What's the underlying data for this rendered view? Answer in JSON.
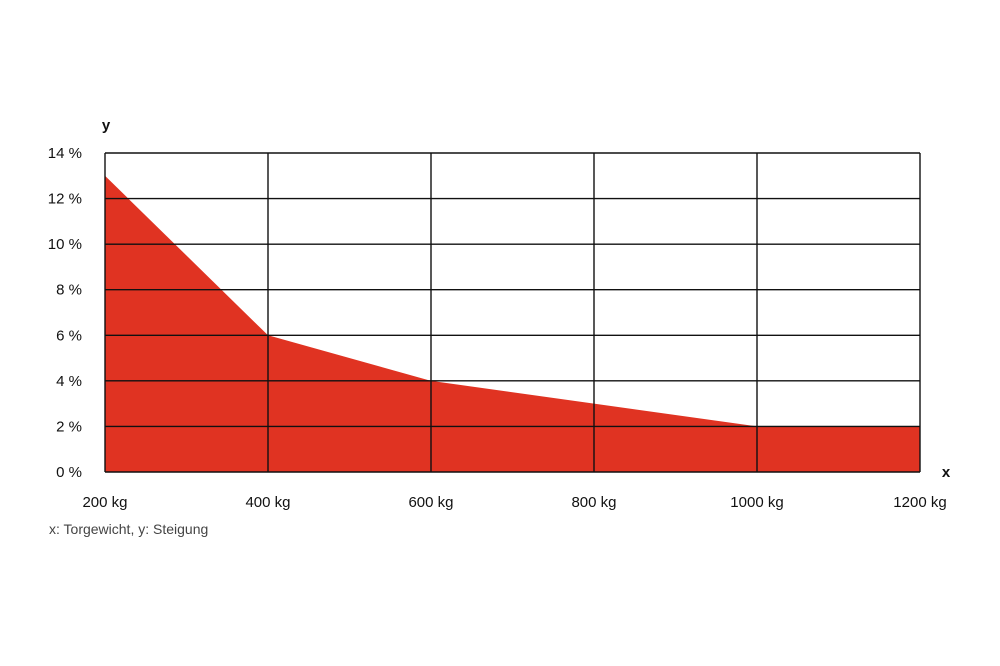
{
  "chart_data": {
    "type": "area",
    "title": "",
    "xlabel": "x",
    "ylabel": "y",
    "x": [
      200,
      400,
      600,
      800,
      1000,
      1200
    ],
    "series": [
      {
        "values": [
          13,
          6,
          4,
          3,
          2,
          2
        ],
        "color": "#e03322"
      }
    ],
    "xlim": [
      200,
      1200
    ],
    "ylim": [
      0,
      14
    ],
    "x_tick_values": [
      200,
      400,
      600,
      800,
      1000,
      1200
    ],
    "x_tick_labels": [
      "200 kg",
      "400 kg",
      "600 kg",
      "800 kg",
      "1000 kg",
      "1200 kg"
    ],
    "y_tick_values": [
      0,
      2,
      4,
      6,
      8,
      10,
      12,
      14
    ],
    "y_tick_labels": [
      "0 %",
      "2 %",
      "4 %",
      "6 %",
      "8 %",
      "10 %",
      "12 %",
      "14 %"
    ],
    "grid": true,
    "grid_color": "#111111"
  },
  "caption": "x: Torgewicht, y: Steigung"
}
